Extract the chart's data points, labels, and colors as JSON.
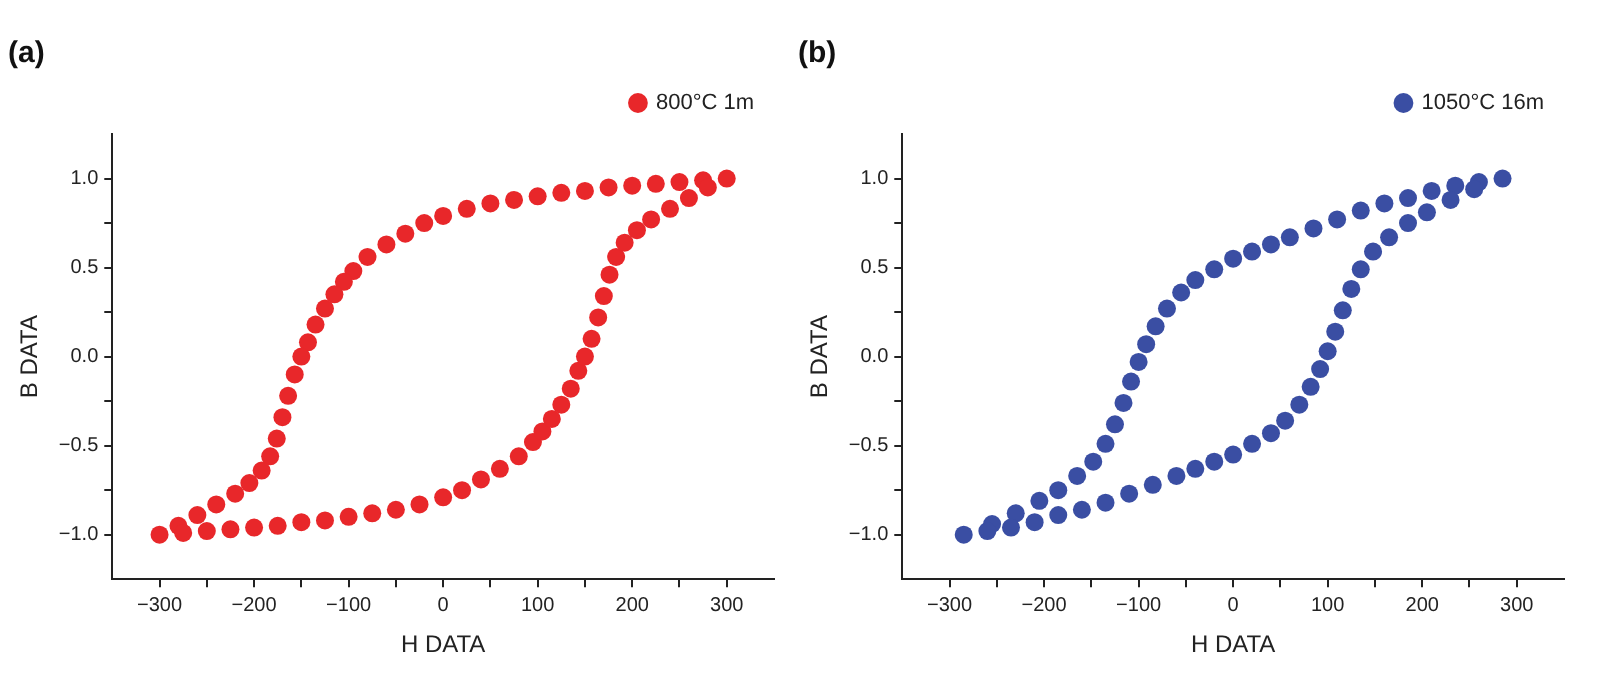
{
  "chart_data": [
    {
      "type": "scatter",
      "title": "(a)",
      "xlabel": "H DATA",
      "ylabel": "B DATA",
      "legend": "top right",
      "marker": "circle",
      "grid": false,
      "xlim": [
        -350,
        350
      ],
      "ylim": [
        -1.25,
        1.25
      ],
      "xticks": [
        {
          "value": -300,
          "label": "−300"
        },
        {
          "value": -250,
          "label": null
        },
        {
          "value": -200,
          "label": "−200"
        },
        {
          "value": -150,
          "label": null
        },
        {
          "value": -100,
          "label": "−100"
        },
        {
          "value": -50,
          "label": null
        },
        0,
        {
          "value": 50,
          "label": null
        },
        100,
        {
          "value": 150,
          "label": null
        },
        200,
        {
          "value": 250,
          "label": null
        },
        300
      ],
      "yticks": [
        {
          "value": -1,
          "label": "−1.0"
        },
        {
          "value": -0.75,
          "label": null
        },
        {
          "value": -0.5,
          "label": "−0.5"
        },
        {
          "value": -0.25,
          "label": null
        },
        {
          "value": 0,
          "label": "0.0"
        },
        {
          "value": 0.25,
          "label": null
        },
        {
          "value": 0.5,
          "label": "0.5"
        },
        {
          "value": 0.75,
          "label": null
        },
        {
          "value": 1,
          "label": "1.0"
        }
      ],
      "series": [
        {
          "name": "800°C 1m",
          "color": "#e8272a",
          "x": [
            300,
            275,
            250,
            225,
            200,
            175,
            150,
            125,
            100,
            75,
            50,
            25,
            0,
            -20,
            -40,
            -60,
            -80,
            -95,
            -105,
            -115,
            -125,
            -135,
            -143,
            -150,
            -157,
            -164,
            -170,
            -176,
            -183,
            -192,
            -205,
            -220,
            -240,
            -260,
            -280,
            -300,
            -275,
            -250,
            -225,
            -200,
            -175,
            -150,
            -125,
            -100,
            -75,
            -50,
            -25,
            0,
            20,
            40,
            60,
            80,
            95,
            105,
            115,
            125,
            135,
            143,
            150,
            157,
            164,
            170,
            176,
            183,
            192,
            205,
            220,
            240,
            260,
            280
          ],
          "values": [
            1.0,
            0.99,
            0.98,
            0.97,
            0.96,
            0.95,
            0.93,
            0.92,
            0.9,
            0.88,
            0.86,
            0.83,
            0.79,
            0.75,
            0.69,
            0.63,
            0.56,
            0.48,
            0.42,
            0.35,
            0.27,
            0.18,
            0.08,
            0.0,
            -0.1,
            -0.22,
            -0.34,
            -0.46,
            -0.56,
            -0.64,
            -0.71,
            -0.77,
            -0.83,
            -0.89,
            -0.95,
            -1.0,
            -0.99,
            -0.98,
            -0.97,
            -0.96,
            -0.95,
            -0.93,
            -0.92,
            -0.9,
            -0.88,
            -0.86,
            -0.83,
            -0.79,
            -0.75,
            -0.69,
            -0.63,
            -0.56,
            -0.48,
            -0.42,
            -0.35,
            -0.27,
            -0.18,
            -0.08,
            0.0,
            0.1,
            0.22,
            0.34,
            0.46,
            0.56,
            0.64,
            0.71,
            0.77,
            0.83,
            0.89,
            0.95
          ]
        }
      ]
    },
    {
      "type": "scatter",
      "title": "(b)",
      "xlabel": "H DATA",
      "ylabel": "B DATA",
      "legend": "top right",
      "marker": "circle",
      "grid": false,
      "xlim": [
        -350,
        350
      ],
      "ylim": [
        -1.25,
        1.25
      ],
      "xticks": [
        {
          "value": -300,
          "label": "−300"
        },
        {
          "value": -250,
          "label": null
        },
        {
          "value": -200,
          "label": "−200"
        },
        {
          "value": -150,
          "label": null
        },
        {
          "value": -100,
          "label": "−100"
        },
        {
          "value": -50,
          "label": null
        },
        0,
        {
          "value": 50,
          "label": null
        },
        100,
        {
          "value": 150,
          "label": null
        },
        200,
        {
          "value": 250,
          "label": null
        },
        300
      ],
      "yticks": [
        {
          "value": -1,
          "label": "−1.0"
        },
        {
          "value": -0.75,
          "label": null
        },
        {
          "value": -0.5,
          "label": "−0.5"
        },
        {
          "value": -0.25,
          "label": null
        },
        {
          "value": 0,
          "label": "0.0"
        },
        {
          "value": 0.25,
          "label": null
        },
        {
          "value": 0.5,
          "label": "0.5"
        },
        {
          "value": 0.75,
          "label": null
        },
        {
          "value": 1,
          "label": "1.0"
        }
      ],
      "series": [
        {
          "name": "1050°C 16m",
          "color": "#3a4ea3",
          "x": [
            285,
            260,
            235,
            210,
            185,
            160,
            135,
            110,
            85,
            60,
            40,
            20,
            0,
            -20,
            -40,
            -55,
            -70,
            -82,
            -92,
            -100,
            -108,
            -116,
            -125,
            -135,
            -148,
            -165,
            -185,
            -205,
            -230,
            -255,
            -285,
            -260,
            -235,
            -210,
            -185,
            -160,
            -135,
            -110,
            -85,
            -60,
            -40,
            -20,
            0,
            20,
            40,
            55,
            70,
            82,
            92,
            100,
            108,
            116,
            125,
            135,
            148,
            165,
            185,
            205,
            230,
            255
          ],
          "values": [
            1.0,
            0.98,
            0.96,
            0.93,
            0.89,
            0.86,
            0.82,
            0.77,
            0.72,
            0.67,
            0.63,
            0.59,
            0.55,
            0.49,
            0.43,
            0.36,
            0.27,
            0.17,
            0.07,
            -0.03,
            -0.14,
            -0.26,
            -0.38,
            -0.49,
            -0.59,
            -0.67,
            -0.75,
            -0.81,
            -0.88,
            -0.94,
            -1.0,
            -0.98,
            -0.96,
            -0.93,
            -0.89,
            -0.86,
            -0.82,
            -0.77,
            -0.72,
            -0.67,
            -0.63,
            -0.59,
            -0.55,
            -0.49,
            -0.43,
            -0.36,
            -0.27,
            -0.17,
            -0.07,
            0.03,
            0.14,
            0.26,
            0.38,
            0.49,
            0.59,
            0.67,
            0.75,
            0.81,
            0.88,
            0.94
          ]
        }
      ]
    }
  ]
}
